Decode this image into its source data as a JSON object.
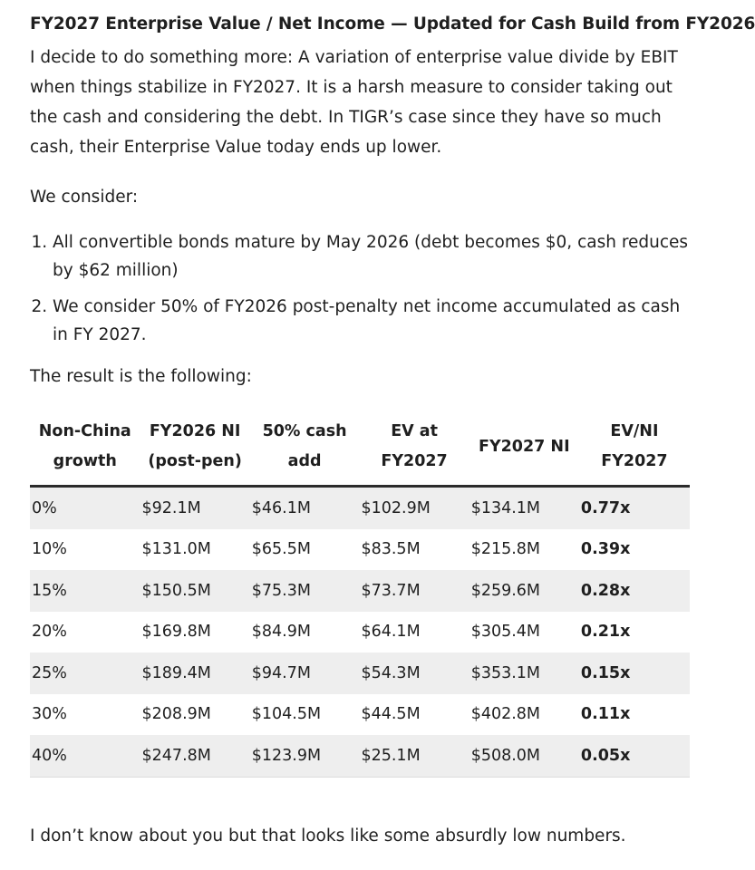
{
  "article": {
    "title": "FY2027 Enterprise Value / Net Income — Updated for Cash Build from FY2026",
    "intro": "I decide to do something more: A variation of enterprise value divide by EBIT when things stabilize in FY2027. It is a harsh measure to consider taking out the cash and considering the debt. In TIGR’s case since they have so much cash, their Enterprise Value today ends up lower.",
    "consider_label": "We consider:",
    "points": [
      "All convertible bonds mature by May 2026 (debt becomes $0, cash reduces by $62 million)",
      "We consider 50% of FY2026 post-penalty net income accumulated as cash in FY 2027."
    ],
    "result_label": "The result is the following:",
    "closing": "I don’t know about you but that looks like some absurdly low numbers."
  },
  "table": {
    "headers": {
      "h0": [
        "Non-China",
        "growth"
      ],
      "h1": [
        "FY2026 NI",
        "(post-pen)"
      ],
      "h2": [
        "50% cash",
        "add"
      ],
      "h3": [
        "EV at",
        "FY2027"
      ],
      "h4": [
        "FY2027 NI"
      ],
      "h5": [
        "EV/NI",
        "FY2027"
      ]
    },
    "rows": [
      [
        "0%",
        "$92.1M",
        "$46.1M",
        "$102.9M",
        "$134.1M",
        "0.77x"
      ],
      [
        "10%",
        "$131.0M",
        "$65.5M",
        "$83.5M",
        "$215.8M",
        "0.39x"
      ],
      [
        "15%",
        "$150.5M",
        "$75.3M",
        "$73.7M",
        "$259.6M",
        "0.28x"
      ],
      [
        "20%",
        "$169.8M",
        "$84.9M",
        "$64.1M",
        "$305.4M",
        "0.21x"
      ],
      [
        "25%",
        "$189.4M",
        "$94.7M",
        "$54.3M",
        "$353.1M",
        "0.15x"
      ],
      [
        "30%",
        "$208.9M",
        "$104.5M",
        "$44.5M",
        "$402.8M",
        "0.11x"
      ],
      [
        "40%",
        "$247.8M",
        "$123.9M",
        "$25.1M",
        "$508.0M",
        "0.05x"
      ]
    ]
  }
}
